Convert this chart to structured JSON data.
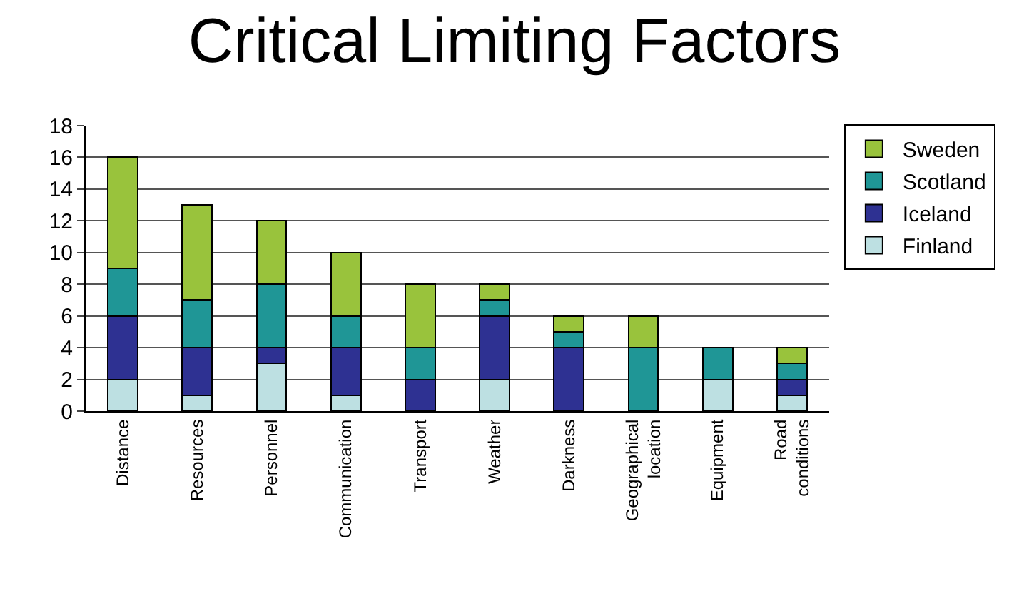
{
  "chart_data": {
    "type": "bar",
    "title": "Critical Limiting Factors",
    "stacked": true,
    "categories": [
      "Distance",
      "Resources",
      "Personnel",
      "Communication",
      "Transport",
      "Weather",
      "Darkness",
      "Geographical location",
      "Equipment",
      "Road conditions"
    ],
    "series": [
      {
        "name": "Finland",
        "color": "#bde0e2",
        "values": [
          2,
          1,
          3,
          1,
          0,
          2,
          0,
          0,
          2,
          1
        ]
      },
      {
        "name": "Iceland",
        "color": "#2e3192",
        "values": [
          4,
          3,
          1,
          3,
          2,
          4,
          4,
          0,
          0,
          1
        ]
      },
      {
        "name": "Scotland",
        "color": "#1f9696",
        "values": [
          3,
          3,
          4,
          2,
          2,
          1,
          1,
          4,
          2,
          1
        ]
      },
      {
        "name": "Sweden",
        "color": "#99c33c",
        "values": [
          7,
          6,
          4,
          4,
          4,
          1,
          1,
          2,
          0,
          1
        ]
      }
    ],
    "ylim": [
      0,
      18
    ],
    "yticks": [
      0,
      2,
      4,
      6,
      8,
      10,
      12,
      14,
      16,
      18
    ],
    "grid": "y",
    "legend": "right"
  }
}
